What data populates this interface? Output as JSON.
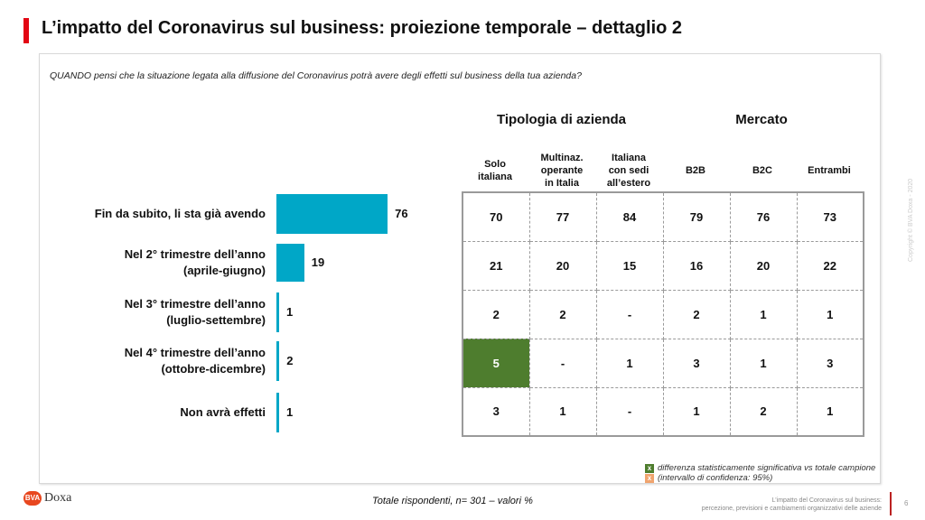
{
  "title": "L’impatto del Coronavirus sul business: proiezione temporale – dettaglio 2",
  "question": "QUANDO pensi che la situazione legata alla diffusione del Coronavirus potrà avere degli effetti sul business della tua azienda?",
  "chart_data": {
    "type": "bar",
    "orientation": "horizontal",
    "categories": [
      "Fin da subito, li sta già avendo",
      "Nel 2° trimestre dell’anno (aprile-giugno)",
      "Nel 3° trimestre dell’anno (luglio-settembre)",
      "Nel 4° trimestre dell’anno (ottobre-dicembre)",
      "Non avrà effetti"
    ],
    "category_lines": [
      [
        "Fin da subito, li sta già avendo"
      ],
      [
        "Nel 2° trimestre dell’anno",
        "(aprile-giugno)"
      ],
      [
        "Nel 3° trimestre dell’anno",
        "(luglio-settembre)"
      ],
      [
        "Nel 4° trimestre dell’anno",
        "(ottobre-dicembre)"
      ],
      [
        "Non avrà effetti"
      ]
    ],
    "values": [
      76,
      19,
      1,
      2,
      1
    ],
    "value_labels": [
      "76",
      "19",
      "1",
      "2",
      "1"
    ],
    "xlim": [
      0,
      100
    ],
    "color": "#00a7c7"
  },
  "table": {
    "groups": [
      "Tipologia di azienda",
      "Mercato"
    ],
    "columns": [
      [
        "Solo",
        "italiana"
      ],
      [
        "Multinaz.",
        "operante",
        "in Italia"
      ],
      [
        "Italiana",
        "con sedi",
        "all’estero"
      ],
      [
        "B2B"
      ],
      [
        "B2C"
      ],
      [
        "Entrambi"
      ]
    ],
    "rows": [
      [
        "70",
        "77",
        "84",
        "79",
        "76",
        "73"
      ],
      [
        "21",
        "20",
        "15",
        "16",
        "20",
        "22"
      ],
      [
        "2",
        "2",
        "-",
        "2",
        "1",
        "1"
      ],
      [
        "5",
        "-",
        "1",
        "3",
        "1",
        "3"
      ],
      [
        "3",
        "1",
        "-",
        "1",
        "2",
        "1"
      ]
    ],
    "significant": [
      [
        3,
        0
      ]
    ],
    "sig_color": "#4e7d2e"
  },
  "legend": {
    "mark": "x",
    "text1": "differenza statisticamente significativa vs totale campione",
    "text2": "(intervallo di confidenza: 95%)",
    "color_pos": "#4e7d2e",
    "color_neg": "#f0a46e"
  },
  "footer": "Totale rispondenti, n= 301 – valori %",
  "logo": {
    "mark": "BVA",
    "name": "Doxa"
  },
  "footer_right": [
    "L’impatto del Coronavirus sul business:",
    "percezione, previsioni e cambiamenti organizzativi delle aziende"
  ],
  "page": "6",
  "copyright": "Copyright © BVA Doxa - 2020"
}
